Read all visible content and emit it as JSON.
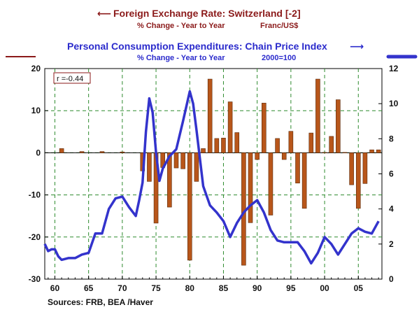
{
  "chart_data": {
    "type": "bar+line",
    "title_left": "Foreign Exchange Rate: Switzerland [-2]",
    "subtitle_left": "% Change - Year to Year",
    "unit_left": "Franc/US$",
    "title_right": "Personal Consumption Expenditures: Chain Price Index",
    "subtitle_right": "% Change - Year to Year",
    "unit_right": "2000=100",
    "annotation": "r =-0.44",
    "source": "Sources:  FRB, BEA /Haver",
    "left_axis": {
      "ylim": [
        -30,
        20
      ],
      "ticks": [
        -30,
        -20,
        -10,
        0,
        10,
        20
      ]
    },
    "right_axis": {
      "ylim": [
        0,
        12
      ],
      "ticks": [
        0,
        2,
        4,
        6,
        8,
        10,
        12
      ]
    },
    "x_axis": {
      "xlim": [
        1958.5,
        2008.5
      ],
      "ticks": [
        1960,
        1965,
        1970,
        1975,
        1980,
        1985,
        1990,
        1995,
        2000,
        2005
      ],
      "tick_labels": [
        "60",
        "65",
        "70",
        "75",
        "80",
        "85",
        "90",
        "95",
        "00",
        "05"
      ]
    },
    "grid": true,
    "bars": {
      "name": "Foreign Exchange Rate: Switzerland [-2]",
      "color": "#b8561a",
      "x": [
        1961,
        1964,
        1967,
        1970,
        1973,
        1974,
        1975,
        1976,
        1977,
        1978,
        1979,
        1980,
        1981,
        1982,
        1983,
        1984,
        1985,
        1986,
        1987,
        1988,
        1989,
        1990,
        1991,
        1992,
        1993,
        1994,
        1995,
        1996,
        1997,
        1998,
        1999,
        2000,
        2001,
        2002,
        2003,
        2004,
        2005,
        2006,
        2007,
        2008
      ],
      "values": [
        1.0,
        0.3,
        0.3,
        0.2,
        -4.3,
        -6.8,
        -16.7,
        -3.5,
        -12.9,
        -3.6,
        -3.8,
        -25.5,
        -6.8,
        1.0,
        17.5,
        3.4,
        3.5,
        12.1,
        4.8,
        -26.7,
        -16.6,
        -1.6,
        11.8,
        -14.8,
        3.4,
        -1.6,
        5.1,
        -7.2,
        -13.2,
        4.7,
        17.5,
        0.1,
        3.9,
        12.6,
        0.1,
        -7.6,
        -13.2,
        -7.3,
        0.7,
        0.7
      ]
    },
    "line": {
      "name": "Personal Consumption Expenditures: Chain Price Index",
      "color": "#3333cc",
      "x": [
        1958.5,
        1959,
        1959.5,
        1960,
        1960.5,
        1961,
        1962,
        1963,
        1964,
        1965,
        1966,
        1967,
        1968,
        1969,
        1970,
        1971,
        1972,
        1972.5,
        1973,
        1973.5,
        1974,
        1974.5,
        1975,
        1975.5,
        1976,
        1977,
        1978,
        1979,
        1980,
        1980.5,
        1981,
        1982,
        1983,
        1984,
        1985,
        1986,
        1987,
        1988,
        1989,
        1990,
        1991,
        1992,
        1993,
        1994,
        1995,
        1996,
        1997,
        1998,
        1999,
        2000,
        2001,
        2002,
        2003,
        2004,
        2005,
        2006,
        2007,
        2008
      ],
      "values": [
        2.0,
        1.6,
        1.7,
        1.7,
        1.3,
        1.1,
        1.2,
        1.2,
        1.4,
        1.5,
        2.6,
        2.6,
        4.0,
        4.6,
        4.7,
        4.1,
        3.6,
        4.5,
        5.5,
        8.4,
        10.3,
        9.5,
        7.2,
        5.6,
        6.3,
        7.0,
        7.4,
        9.0,
        10.7,
        10.0,
        8.5,
        5.3,
        4.2,
        3.8,
        3.3,
        2.4,
        3.2,
        3.8,
        4.2,
        4.5,
        3.8,
        2.8,
        2.2,
        2.1,
        2.1,
        2.1,
        1.6,
        0.9,
        1.5,
        2.4,
        2.0,
        1.4,
        2.0,
        2.6,
        2.9,
        2.7,
        2.6,
        3.3
      ]
    }
  }
}
